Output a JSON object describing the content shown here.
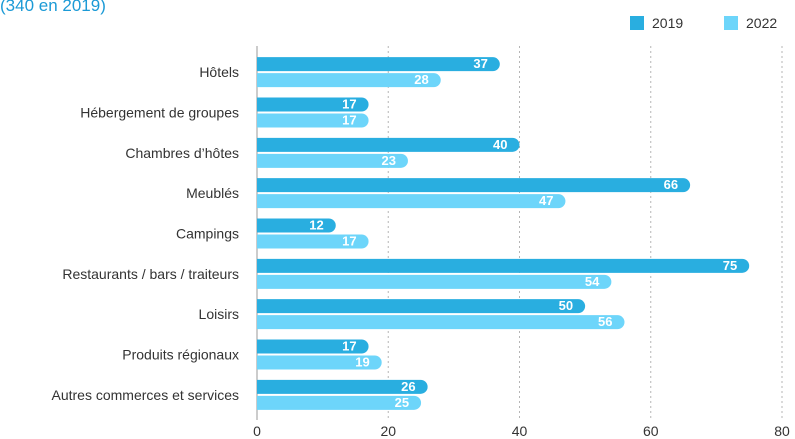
{
  "header": {
    "subtitle": "(340 en 2019)"
  },
  "chart_data": {
    "type": "bar",
    "orientation": "horizontal",
    "categories": [
      "Hôtels",
      "Hébergement de groupes",
      "Chambres d’hôtes",
      "Meublés",
      "Campings",
      "Restaurants / bars / traiteurs",
      "Loisirs",
      "Produits régionaux",
      "Autres commerces et services"
    ],
    "series": [
      {
        "name": "2019",
        "color": "#29aee0",
        "values": [
          37,
          17,
          40,
          66,
          12,
          75,
          50,
          17,
          26
        ]
      },
      {
        "name": "2022",
        "color": "#6dd5fa",
        "values": [
          28,
          17,
          23,
          47,
          17,
          54,
          56,
          19,
          25
        ]
      }
    ],
    "xlim": [
      0,
      80
    ],
    "xticks": [
      "0",
      "20",
      "40",
      "60",
      "80"
    ],
    "grid": true,
    "legend_position": "top-right"
  }
}
